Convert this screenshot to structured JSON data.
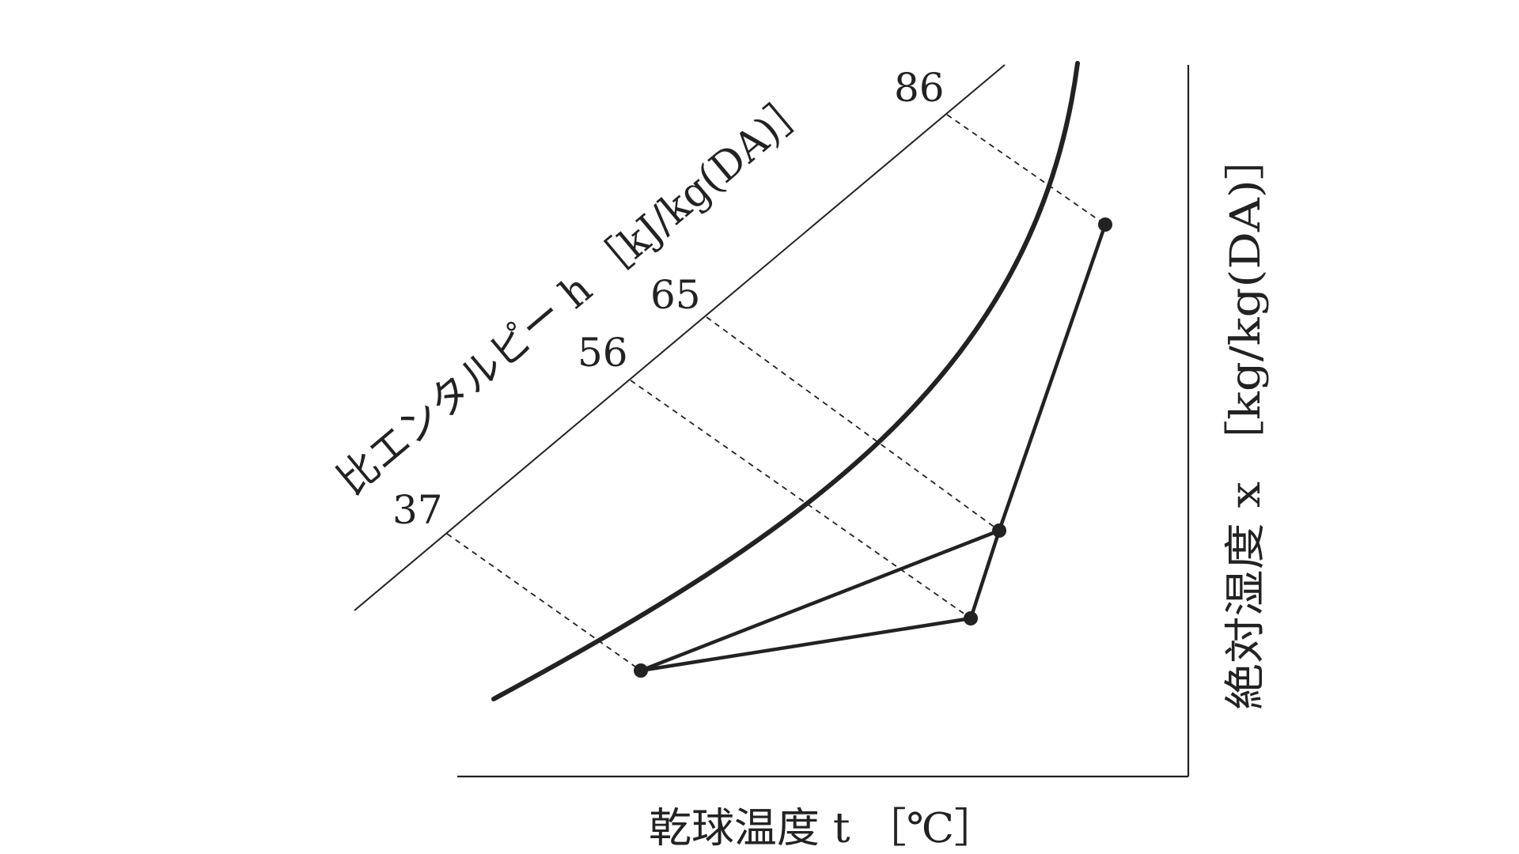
{
  "x_axis_label": "乾球温度 t ［℃］",
  "y_axis_label": "絶対湿度 x ［kg/kg(DA)］",
  "enthalpy_label": "比エンタルピー h ［kJ/kg(DA)］",
  "enthalpy_values": [
    "37",
    "56",
    "65",
    "86"
  ],
  "state_point_count": 4
}
